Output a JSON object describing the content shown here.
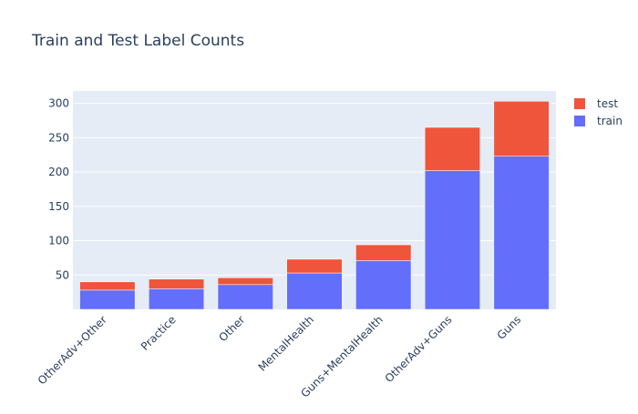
{
  "chart_data": {
    "type": "bar",
    "barmode": "stack",
    "title": "Train and Test Label Counts",
    "xlabel": "",
    "ylabel": "",
    "categories": [
      "OtherAdv+Other",
      "Practice",
      "Other",
      "MentalHealth",
      "Guns+MentalHealth",
      "OtherAdv+Guns",
      "Guns"
    ],
    "series": [
      {
        "name": "train",
        "color": "#636efa",
        "values": [
          28,
          30,
          36,
          53,
          71,
          202,
          223
        ]
      },
      {
        "name": "test",
        "color": "#ef553b",
        "values": [
          12,
          14,
          10,
          20,
          23,
          63,
          80
        ]
      }
    ],
    "ylim": [
      0,
      318
    ],
    "yticks": [
      50,
      100,
      150,
      200,
      250,
      300
    ],
    "grid": true,
    "legend_position": "top-right",
    "plot_background": "#e5ecf6"
  }
}
